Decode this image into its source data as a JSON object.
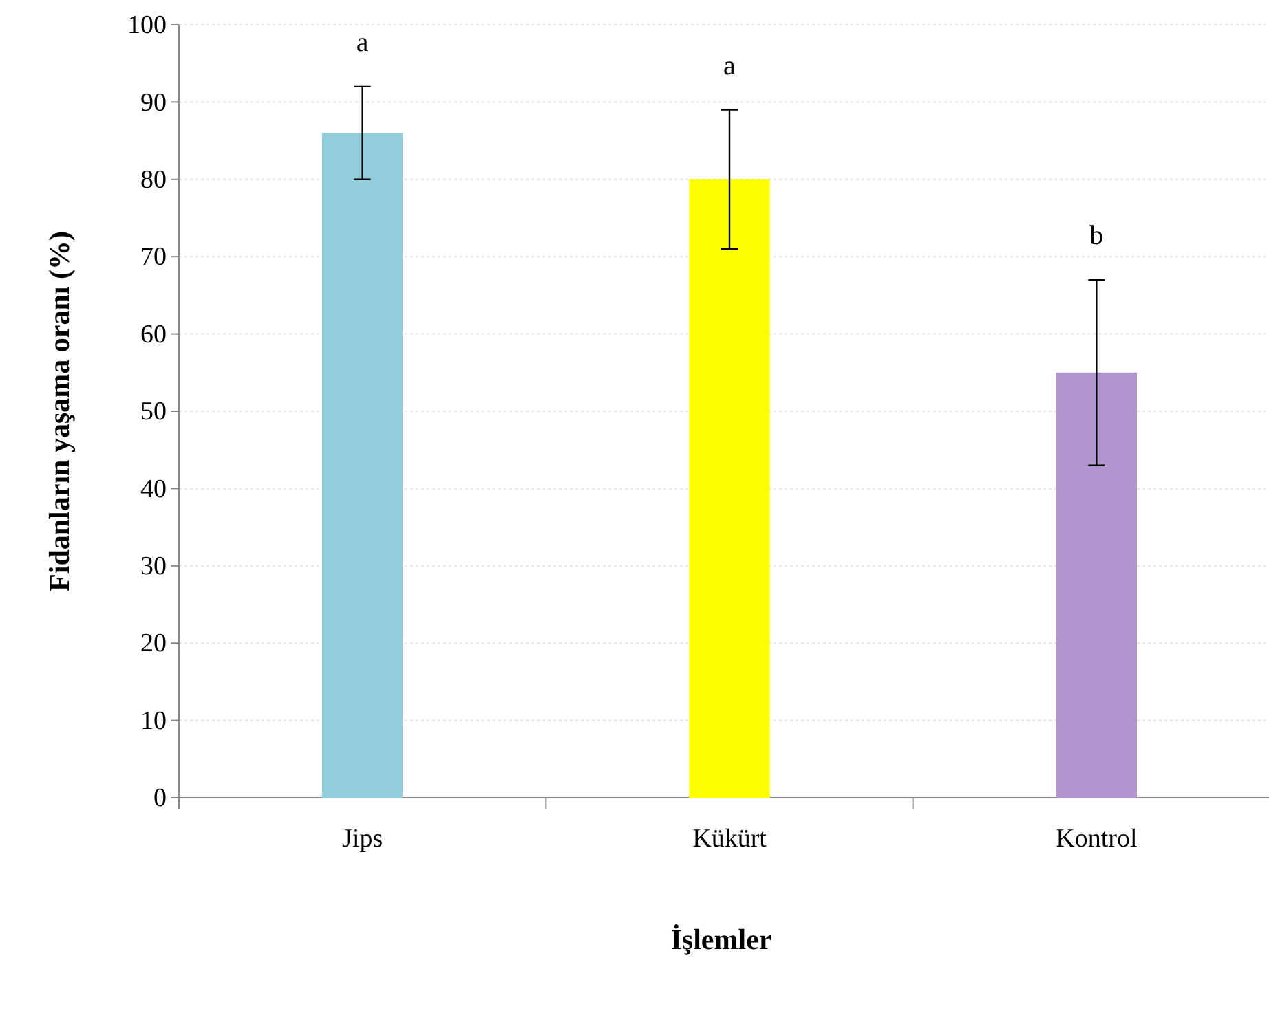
{
  "chart_data": {
    "type": "bar",
    "xlabel": "İşlemler",
    "ylabel": "Fidanların yaşama oranı (%)",
    "categories": [
      "Jips",
      "Kükürt",
      "Kontrol"
    ],
    "values": [
      86,
      80,
      55
    ],
    "colors": [
      "#92cddc",
      "#ffff00",
      "#b195cf"
    ],
    "errors": [
      [
        80,
        92
      ],
      [
        71,
        89
      ],
      [
        43,
        67
      ]
    ],
    "ylim": [
      0,
      100
    ],
    "yticks": [
      0,
      10,
      20,
      30,
      40,
      50,
      60,
      70,
      80,
      90,
      100
    ],
    "grid": "y",
    "annotations": [
      {
        "text": "a",
        "x": "Jips",
        "y": 92
      },
      {
        "text": "a",
        "x": "Kükürt",
        "y": 89
      },
      {
        "text": "b",
        "x": "Kontrol",
        "y": 67
      }
    ]
  }
}
